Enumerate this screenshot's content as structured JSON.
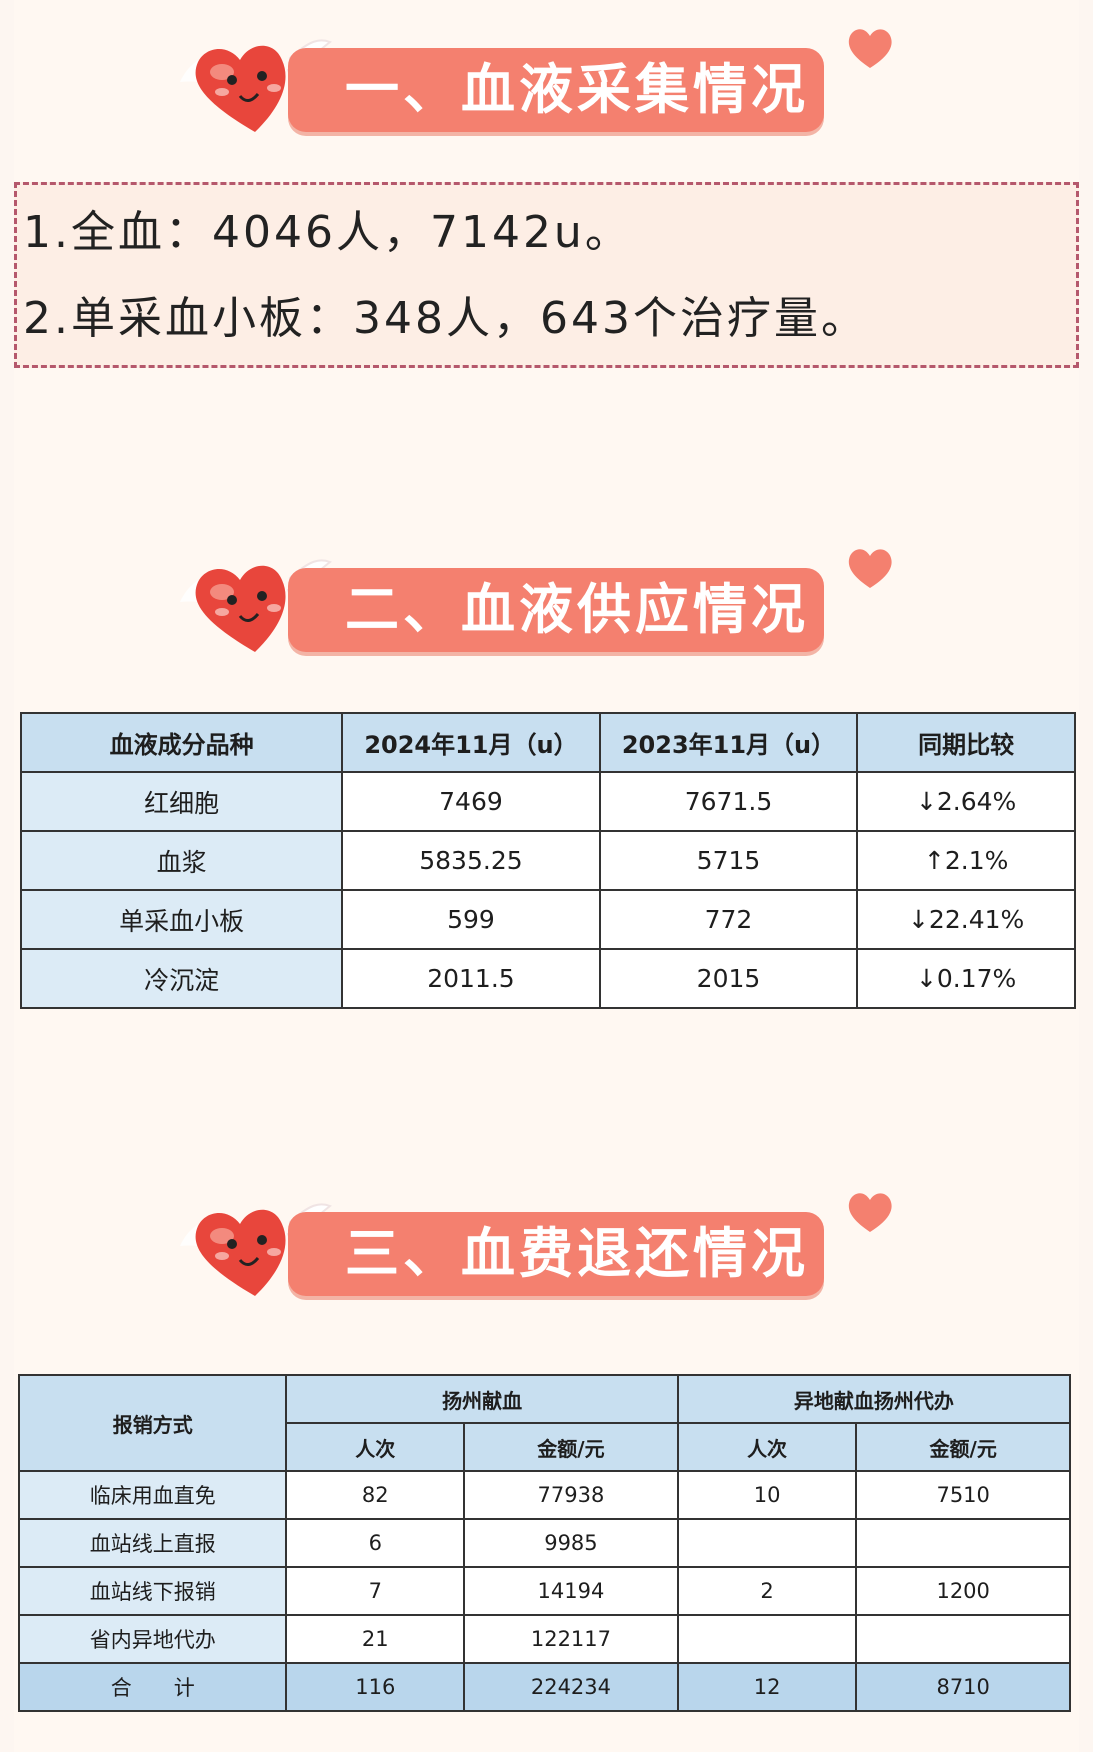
{
  "sections": [
    {
      "title": "一、血液采集情况"
    },
    {
      "title": "二、血液供应情况"
    },
    {
      "title": "三、血费退还情况"
    }
  ],
  "collection": {
    "lines": [
      "1.全血：4046人，7142u。",
      "2.单采血小板：348人，643个治疗量。"
    ]
  },
  "supply_table": {
    "headers": [
      "血液成分品种",
      "2024年11月（u）",
      "2023年11月（u）",
      "同期比较"
    ],
    "rows": [
      [
        "红细胞",
        "7469",
        "7671.5",
        "↓2.64%"
      ],
      [
        "血浆",
        "5835.25",
        "5715",
        "↑2.1%"
      ],
      [
        "单采血小板",
        "599",
        "772",
        "↓22.41%"
      ],
      [
        "冷沉淀",
        "2011.5",
        "2015",
        "↓0.17%"
      ]
    ]
  },
  "refund_table": {
    "col_main": "报销方式",
    "group1": "扬州献血",
    "group2": "异地献血扬州代办",
    "sub": [
      "人次",
      "金额/元",
      "人次",
      "金额/元"
    ],
    "rows": [
      [
        "临床用血直免",
        "82",
        "77938",
        "10",
        "7510"
      ],
      [
        "血站线上直报",
        "6",
        "9985",
        "",
        ""
      ],
      [
        "血站线下报销",
        "7",
        "14194",
        "2",
        "1200"
      ],
      [
        "省内异地代办",
        "21",
        "122117",
        "",
        ""
      ]
    ],
    "total": [
      "合　　计",
      "116",
      "224234",
      "12",
      "8710"
    ]
  },
  "colors": {
    "banner": "#f4806f",
    "header_cell": "#c8dff0",
    "heart": "#e8463c"
  },
  "icons": [
    "winged-heart-mascot-icon",
    "small-heart-icon"
  ]
}
